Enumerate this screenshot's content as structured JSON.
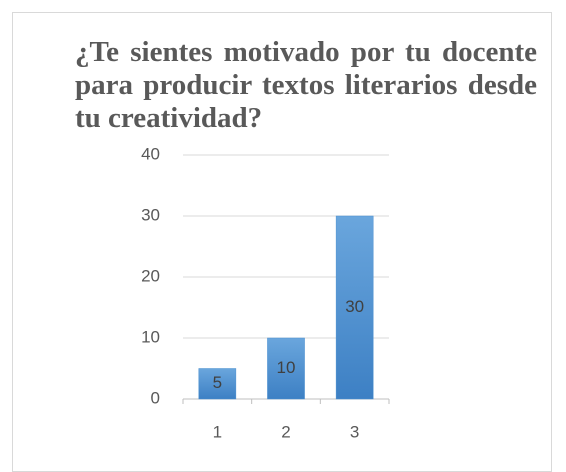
{
  "chart_data": {
    "type": "bar",
    "title": "¿Te sientes motivado por tu docente para producir textos literarios desde tu creatividad?",
    "categories": [
      "1",
      "2",
      "3"
    ],
    "values": [
      5,
      10,
      30
    ],
    "color": "#4a8fd0",
    "ylim": [
      0,
      40
    ],
    "yticks": [
      0,
      10,
      20,
      30,
      40
    ],
    "grid": true
  }
}
